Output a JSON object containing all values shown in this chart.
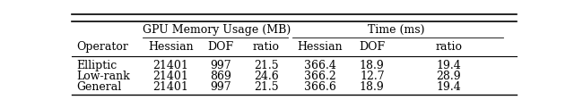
{
  "col_groups": [
    {
      "label": "GPU Memory Usage (MB)",
      "start": 1,
      "end": 3
    },
    {
      "label": "Time (ms)",
      "start": 4,
      "end": 6
    }
  ],
  "row_header": "Operator",
  "sub_headers": [
    "Hessian",
    "DOF",
    "ratio",
    "Hessian",
    "DOF",
    "ratio"
  ],
  "rows": [
    [
      "Elliptic",
      "21401",
      "997",
      "21.5",
      "366.4",
      "18.9",
      "19.4"
    ],
    [
      "Low-rank",
      "21401",
      "869",
      "24.6",
      "366.2",
      "12.7",
      "28.9"
    ],
    [
      "General",
      "21401",
      "997",
      "21.5",
      "366.6",
      "18.9",
      "19.4"
    ]
  ],
  "header_fontsize": 9,
  "cell_fontsize": 9,
  "background_color": "#ffffff",
  "line_color": "#000000"
}
